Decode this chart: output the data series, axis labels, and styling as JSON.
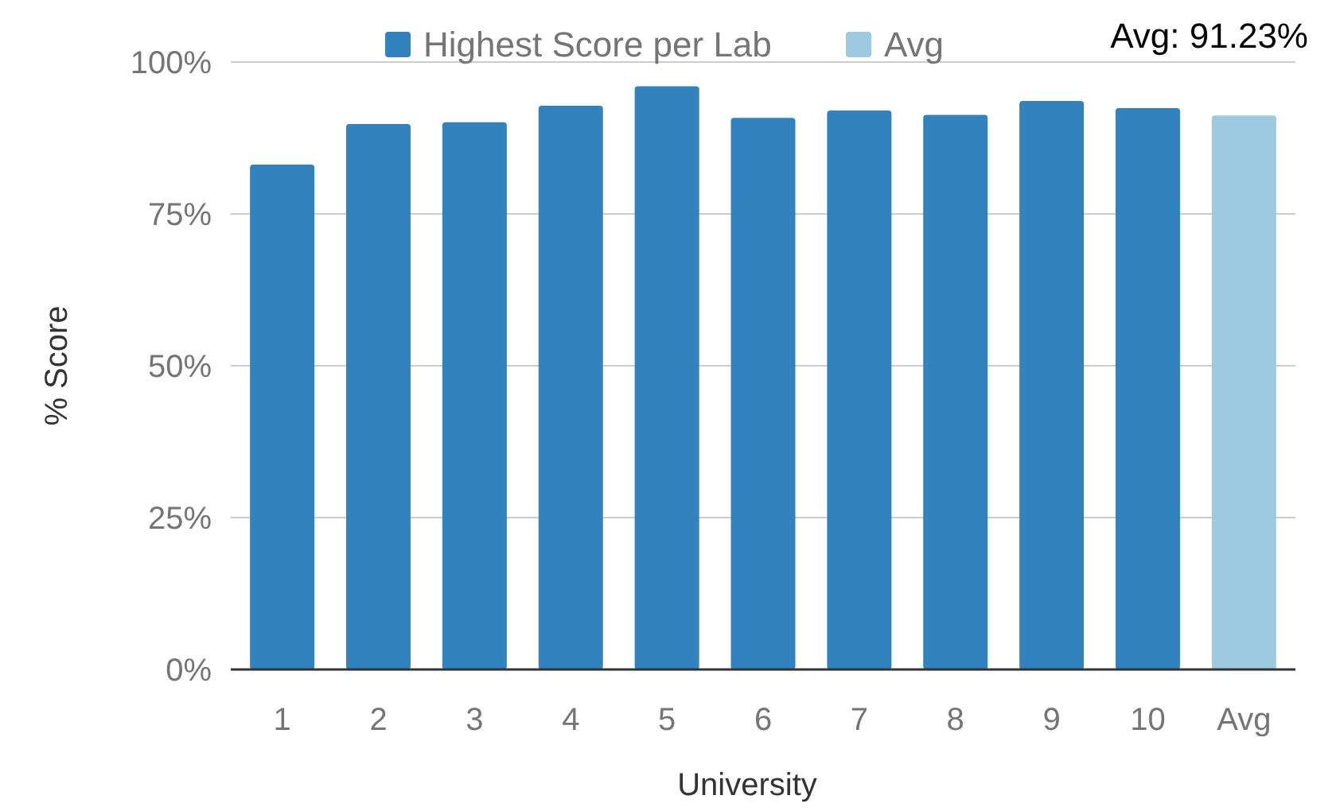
{
  "chart_data": {
    "type": "bar",
    "xlabel": "University",
    "ylabel": "% Score",
    "categories": [
      "1",
      "2",
      "3",
      "4",
      "5",
      "6",
      "7",
      "8",
      "9",
      "10",
      "Avg"
    ],
    "series": [
      {
        "name": "Highest Score per Lab",
        "color": "#3182bd",
        "values": [
          83.1,
          89.8,
          90.1,
          92.8,
          96.0,
          90.8,
          92.0,
          91.3,
          93.6,
          92.4,
          null
        ]
      },
      {
        "name": "Avg",
        "color": "#9ecae1",
        "values": [
          null,
          null,
          null,
          null,
          null,
          null,
          null,
          null,
          null,
          null,
          91.2
        ]
      }
    ],
    "ylim": [
      0,
      100
    ],
    "yticks": [
      {
        "value": 0,
        "label": "0%"
      },
      {
        "value": 25,
        "label": "25%"
      },
      {
        "value": 50,
        "label": "50%"
      },
      {
        "value": 75,
        "label": "75%"
      },
      {
        "value": 100,
        "label": "100%"
      }
    ],
    "grid": "y",
    "legend": "top",
    "annotations": [
      "Avg: 91.23%"
    ]
  }
}
